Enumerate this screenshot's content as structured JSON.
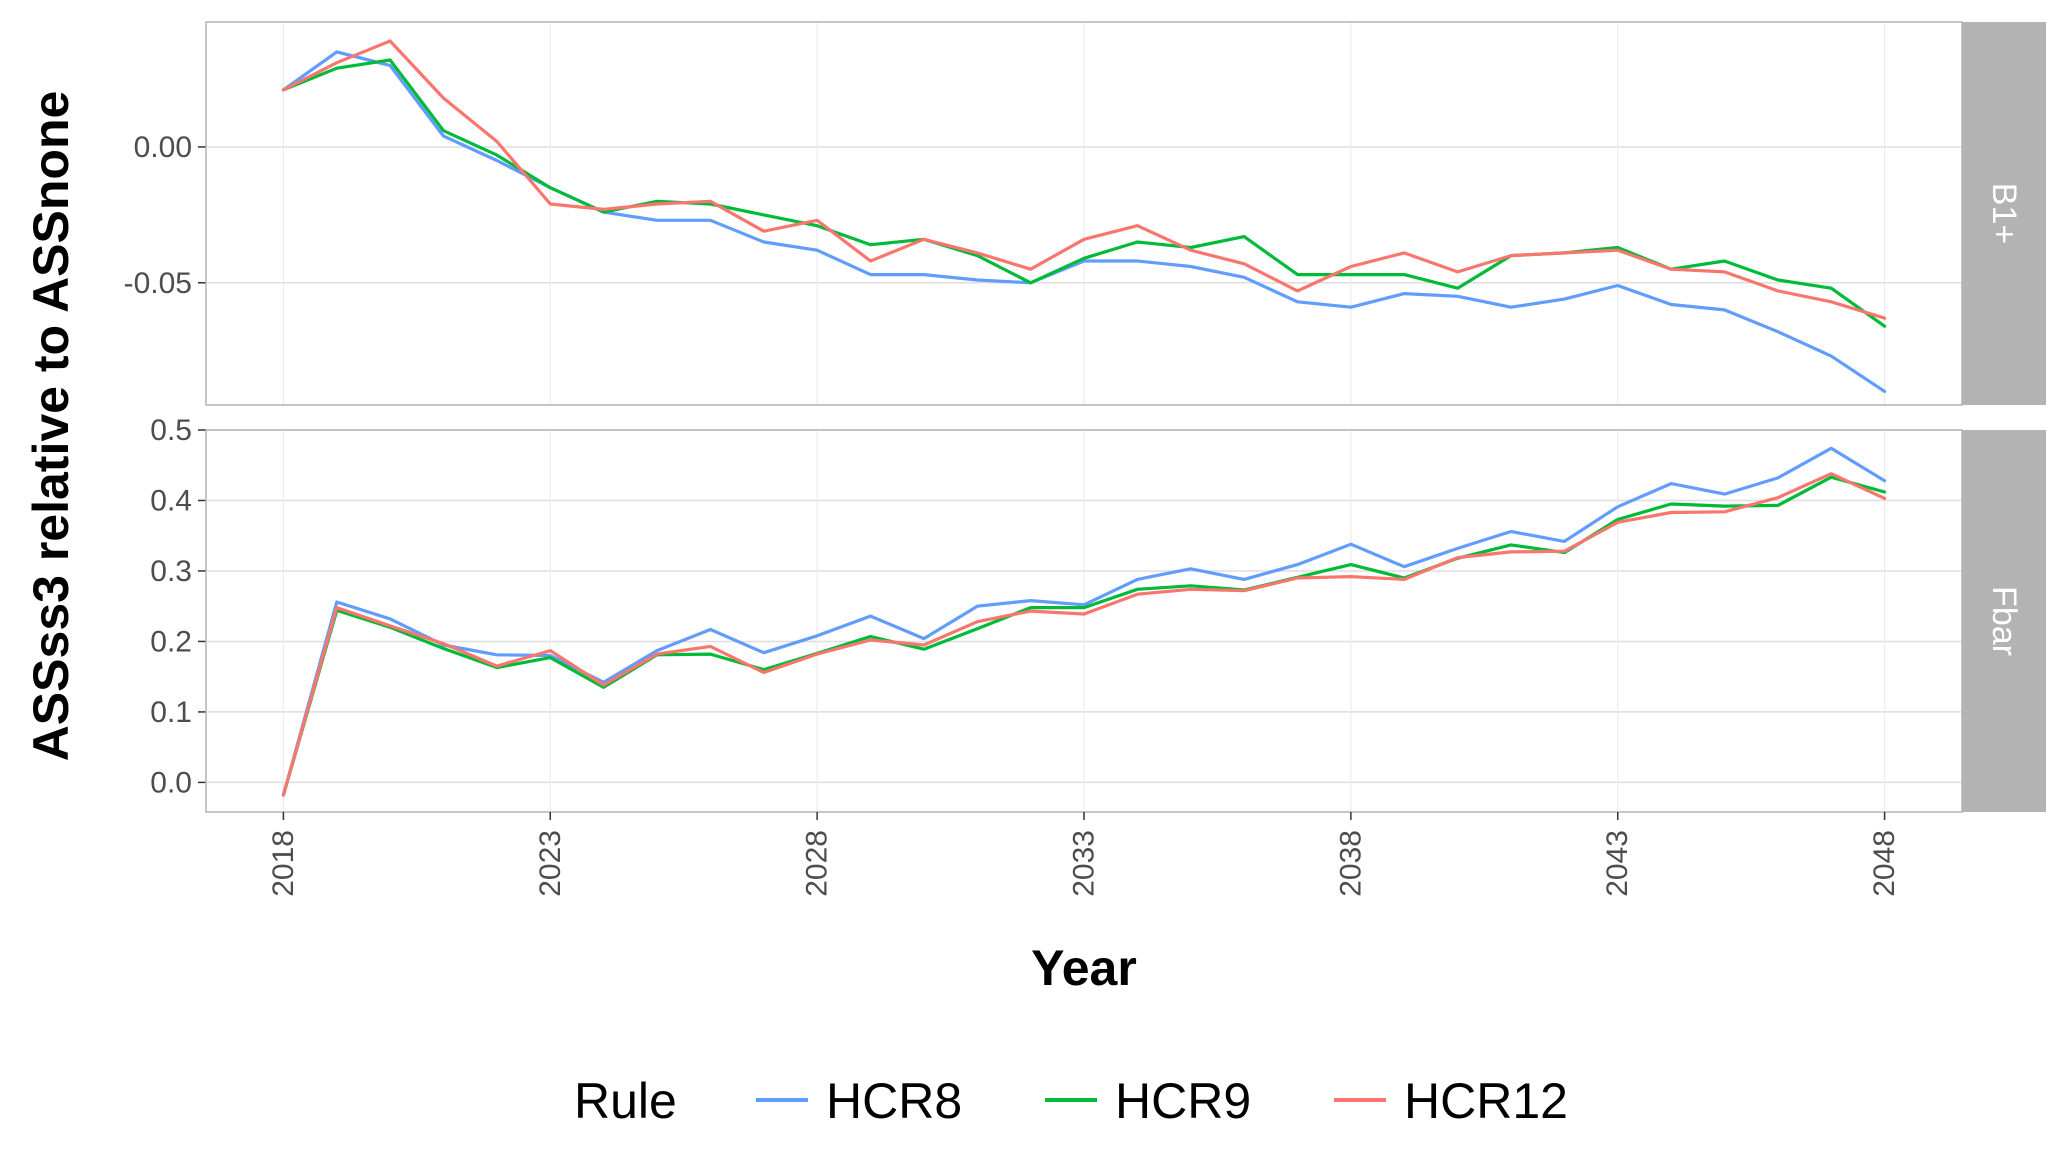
{
  "chart_data": {
    "type": "line",
    "xlabel": "Year",
    "ylabel": "ASSss3 relative to ASSnone",
    "x": [
      2018,
      2019,
      2020,
      2021,
      2022,
      2023,
      2024,
      2025,
      2026,
      2027,
      2028,
      2029,
      2030,
      2031,
      2032,
      2033,
      2034,
      2035,
      2036,
      2037,
      2038,
      2039,
      2040,
      2041,
      2042,
      2043,
      2044,
      2045,
      2046,
      2047,
      2048
    ],
    "x_ticks": [
      "2018",
      "2023",
      "2028",
      "2033",
      "2038",
      "2043",
      "2048"
    ],
    "legend": {
      "title": "Rule",
      "position": "bottom"
    },
    "grid": true,
    "series_colors": {
      "HCR8": "#619CFF",
      "HCR9": "#00BA38",
      "HCR12": "#F8766D"
    },
    "panels": [
      {
        "strip": "B1+",
        "ylim": [
          -0.095,
          0.046
        ],
        "y_ticks": [
          0.0,
          -0.05
        ],
        "y_tick_labels": [
          "0.00",
          "-0.05"
        ],
        "series": [
          {
            "name": "HCR8",
            "values": [
              0.021,
              0.035,
              0.03,
              0.004,
              -0.005,
              -0.015,
              -0.024,
              -0.027,
              -0.027,
              -0.035,
              -0.038,
              -0.047,
              -0.047,
              -0.049,
              -0.05,
              -0.042,
              -0.042,
              -0.044,
              -0.048,
              -0.057,
              -0.059,
              -0.054,
              -0.055,
              -0.059,
              -0.056,
              -0.051,
              -0.058,
              -0.06,
              -0.068,
              -0.077,
              -0.09
            ]
          },
          {
            "name": "HCR9",
            "values": [
              0.021,
              0.029,
              0.032,
              0.006,
              -0.003,
              -0.015,
              -0.024,
              -0.02,
              -0.021,
              -0.025,
              -0.029,
              -0.036,
              -0.034,
              -0.04,
              -0.05,
              -0.041,
              -0.035,
              -0.037,
              -0.033,
              -0.047,
              -0.047,
              -0.047,
              -0.052,
              -0.04,
              -0.039,
              -0.037,
              -0.045,
              -0.042,
              -0.049,
              -0.052,
              -0.066
            ]
          },
          {
            "name": "HCR12",
            "values": [
              0.021,
              0.031,
              0.039,
              0.018,
              0.002,
              -0.021,
              -0.023,
              -0.021,
              -0.02,
              -0.031,
              -0.027,
              -0.042,
              -0.034,
              -0.039,
              -0.045,
              -0.034,
              -0.029,
              -0.038,
              -0.043,
              -0.053,
              -0.044,
              -0.039,
              -0.046,
              -0.04,
              -0.039,
              -0.038,
              -0.045,
              -0.046,
              -0.053,
              -0.057,
              -0.063
            ]
          }
        ]
      },
      {
        "strip": "Fbar",
        "ylim": [
          -0.042,
          0.5
        ],
        "y_ticks": [
          0.0,
          0.1,
          0.2,
          0.3,
          0.4,
          0.5
        ],
        "y_tick_labels": [
          "0.0",
          "0.1",
          "0.2",
          "0.3",
          "0.4",
          "0.5"
        ],
        "series": [
          {
            "name": "HCR8",
            "values": [
              -0.018,
              0.256,
              0.232,
              0.195,
              0.181,
              0.18,
              0.142,
              0.187,
              0.217,
              0.184,
              0.208,
              0.236,
              0.204,
              0.25,
              0.258,
              0.252,
              0.288,
              0.303,
              0.288,
              0.309,
              0.338,
              0.306,
              0.332,
              0.356,
              0.342,
              0.391,
              0.424,
              0.409,
              0.432,
              0.474,
              0.428
            ]
          },
          {
            "name": "HCR9",
            "values": [
              -0.018,
              0.244,
              0.22,
              0.19,
              0.163,
              0.177,
              0.135,
              0.181,
              0.182,
              0.16,
              0.183,
              0.207,
              0.189,
              0.218,
              0.248,
              0.248,
              0.274,
              0.279,
              0.273,
              0.291,
              0.309,
              0.29,
              0.318,
              0.337,
              0.326,
              0.373,
              0.395,
              0.392,
              0.393,
              0.433,
              0.412
            ]
          },
          {
            "name": "HCR12",
            "values": [
              -0.018,
              0.248,
              0.222,
              0.197,
              0.165,
              0.187,
              0.138,
              0.182,
              0.193,
              0.156,
              0.182,
              0.202,
              0.195,
              0.228,
              0.243,
              0.239,
              0.267,
              0.274,
              0.272,
              0.29,
              0.292,
              0.288,
              0.319,
              0.327,
              0.328,
              0.369,
              0.383,
              0.384,
              0.404,
              0.438,
              0.403
            ]
          }
        ]
      }
    ]
  }
}
